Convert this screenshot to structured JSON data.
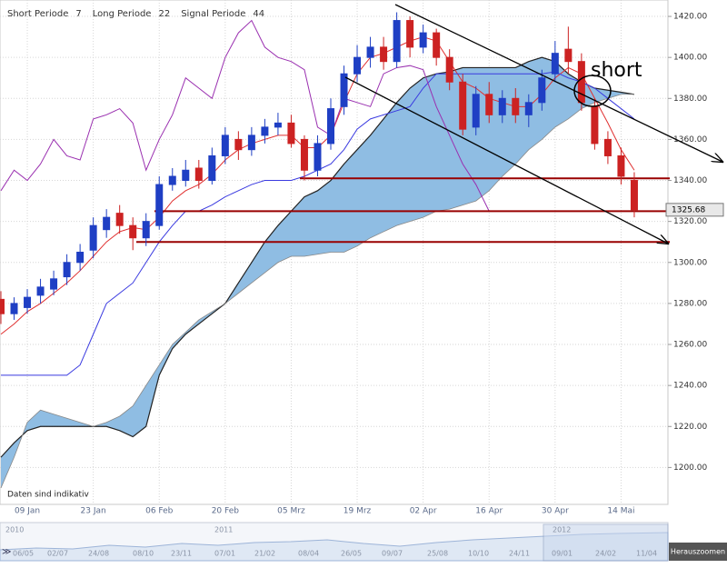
{
  "chart_data": {
    "type": "candlestick",
    "indicators": [
      {
        "label": "Short Periode",
        "period": 7
      },
      {
        "label": "Long Periode",
        "period": 22
      },
      {
        "label": "Signal Periode",
        "period": 44
      }
    ],
    "categories": [
      null,
      null,
      "09 Jan",
      null,
      null,
      null,
      null,
      "23 Jan",
      null,
      null,
      null,
      null,
      "06 Feb",
      null,
      null,
      null,
      null,
      "20 Feb",
      null,
      null,
      null,
      null,
      "05 Mrz",
      null,
      null,
      null,
      null,
      "19 Mrz",
      null,
      null,
      null,
      null,
      "02 Apr",
      null,
      null,
      null,
      null,
      "16 Apr",
      null,
      null,
      null,
      null,
      "30 Apr",
      null,
      null,
      null,
      null,
      "14 Mai",
      null
    ],
    "open": [
      1282,
      1275,
      1278,
      1284,
      1287,
      1293,
      1300,
      1306,
      1316,
      1324,
      1318,
      1312,
      1318,
      1338,
      1340,
      1346,
      1340,
      1352,
      1360,
      1355,
      1362,
      1366,
      1368,
      1360,
      1345,
      1358,
      1376,
      1392,
      1400,
      1405,
      1398,
      1418,
      1405,
      1412,
      1400,
      1388,
      1366,
      1382,
      1372,
      1380,
      1372,
      1378,
      1392,
      1404,
      1398,
      1376,
      1360,
      1352,
      1340
    ],
    "high": [
      1286,
      1283,
      1287,
      1292,
      1296,
      1304,
      1309,
      1322,
      1326,
      1328,
      1322,
      1324,
      1342,
      1346,
      1350,
      1350,
      1356,
      1366,
      1364,
      1366,
      1370,
      1373,
      1372,
      1362,
      1362,
      1380,
      1396,
      1406,
      1410,
      1410,
      1422,
      1420,
      1416,
      1414,
      1404,
      1392,
      1386,
      1388,
      1384,
      1385,
      1382,
      1394,
      1408,
      1415,
      1402,
      1380,
      1364,
      1356,
      1344
    ],
    "low": [
      1270,
      1272,
      1275,
      1280,
      1284,
      1289,
      1296,
      1302,
      1312,
      1314,
      1306,
      1308,
      1316,
      1335,
      1337,
      1336,
      1338,
      1348,
      1350,
      1352,
      1358,
      1362,
      1356,
      1340,
      1342,
      1355,
      1372,
      1388,
      1395,
      1394,
      1395,
      1400,
      1402,
      1396,
      1384,
      1362,
      1362,
      1368,
      1368,
      1368,
      1366,
      1374,
      1388,
      1392,
      1374,
      1355,
      1348,
      1338,
      1322
    ],
    "close": [
      1275,
      1280,
      1283,
      1288,
      1292,
      1300,
      1305,
      1318,
      1322,
      1318,
      1312,
      1320,
      1338,
      1342,
      1345,
      1340,
      1352,
      1362,
      1355,
      1362,
      1366,
      1368,
      1358,
      1345,
      1358,
      1375,
      1392,
      1400,
      1405,
      1398,
      1418,
      1405,
      1412,
      1400,
      1388,
      1365,
      1382,
      1372,
      1380,
      1372,
      1378,
      1390,
      1402,
      1398,
      1378,
      1358,
      1352,
      1342,
      1325.68
    ],
    "up_color": "#1f3fc4",
    "down_color": "#cc2222",
    "lines": [
      {
        "color": "#e03030",
        "values": [
          1265,
          1270,
          1276,
          1280,
          1285,
          1290,
          1296,
          1303,
          1310,
          1315,
          1317,
          1316,
          1322,
          1330,
          1335,
          1338,
          1343,
          1350,
          1355,
          1358,
          1360,
          1362,
          1362,
          1356,
          1356,
          1362,
          1378,
          1392,
          1400,
          1402,
          1405,
          1408,
          1410,
          1408,
          1398,
          1388,
          1385,
          1380,
          1378,
          1376,
          1376,
          1382,
          1390,
          1395,
          1392,
          1380,
          1368,
          1355,
          1345
        ]
      },
      {
        "color": "#3a3ae0",
        "values": [
          1245,
          1245,
          1245,
          1245,
          1245,
          1245,
          1250,
          1265,
          1280,
          1285,
          1290,
          1300,
          1310,
          1318,
          1325,
          1325,
          1328,
          1332,
          1335,
          1338,
          1340,
          1340,
          1340,
          1342,
          1345,
          1348,
          1355,
          1365,
          1370,
          1372,
          1374,
          1376,
          1385,
          1392,
          1392,
          1392,
          1392,
          1392,
          1392,
          1392,
          1392,
          1392,
          1393,
          1390,
          1388,
          1385,
          1380,
          1375,
          1370
        ]
      },
      {
        "color": "#9a30b0",
        "values": [
          1335,
          1345,
          1340,
          1348,
          1360,
          1352,
          1350,
          1370,
          1372,
          1375,
          1368,
          1345,
          1360,
          1372,
          1390,
          1385,
          1380,
          1400,
          1412,
          1418,
          1405,
          1400,
          1398,
          1394,
          1366,
          1362,
          1380,
          1378,
          1376,
          1392,
          1395,
          1396,
          1394,
          1376,
          1362,
          1348,
          1338,
          1325,
          null,
          null,
          null,
          null,
          null,
          null,
          null,
          null,
          null,
          null,
          null
        ]
      }
    ],
    "cloud": {
      "color": "#8fbde3",
      "span_a": [
        1205,
        1212,
        1218,
        1220,
        1220,
        1220,
        1220,
        1220,
        1220,
        1218,
        1215,
        1220,
        1245,
        1258,
        1265,
        1270,
        1275,
        1280,
        1290,
        1300,
        1310,
        1318,
        1325,
        1332,
        1335,
        1340,
        1348,
        1355,
        1362,
        1370,
        1378,
        1385,
        1390,
        1392,
        1393,
        1395,
        1395,
        1395,
        1395,
        1395,
        1398,
        1400,
        1398,
        1392,
        1388,
        1385,
        1384,
        1383,
        1382
      ],
      "span_b": [
        1190,
        1205,
        1222,
        1228,
        1226,
        1224,
        1222,
        1220,
        1222,
        1225,
        1230,
        1240,
        1250,
        1260,
        1266,
        1272,
        1276,
        1280,
        1285,
        1290,
        1295,
        1300,
        1303,
        1303,
        1304,
        1305,
        1305,
        1308,
        1312,
        1315,
        1318,
        1320,
        1322,
        1325,
        1326,
        1328,
        1330,
        1335,
        1342,
        1348,
        1355,
        1360,
        1366,
        1370,
        1375,
        1378,
        1380,
        1382,
        1382
      ]
    },
    "levels": [
      1341,
      1325,
      1310
    ],
    "level_color": "#990000",
    "ylim": [
      1182,
      1428
    ],
    "yticks": [
      {
        "value": 1200,
        "label": "1200.00"
      },
      {
        "value": 1220,
        "label": "1220.00"
      },
      {
        "value": 1240,
        "label": "1240.00"
      },
      {
        "value": 1260,
        "label": "1260.00"
      },
      {
        "value": 1280,
        "label": "1280.00"
      },
      {
        "value": 1300,
        "label": "1300.00"
      },
      {
        "value": 1320,
        "label": "1320.00"
      },
      {
        "value": 1340,
        "label": "1340.00"
      },
      {
        "value": 1360,
        "label": "1360.00"
      },
      {
        "value": 1380,
        "label": "1380.00"
      },
      {
        "value": 1400,
        "label": "1400.00"
      },
      {
        "value": 1420,
        "label": "1420.00"
      }
    ],
    "grid": true,
    "annotation": "short",
    "note": "Daten sind indikativ"
  },
  "navigator": {
    "years": [
      "2010",
      "2011",
      "2012"
    ],
    "dates": [
      "06/05",
      "02/07",
      "24/08",
      "08/10",
      "23/11",
      "07/01",
      "21/02",
      "08/04",
      "26/05",
      "09/07",
      "25/08",
      "10/10",
      "24/11",
      "09/01",
      "24/02",
      "11/04"
    ],
    "button": "Herauszoomen"
  }
}
